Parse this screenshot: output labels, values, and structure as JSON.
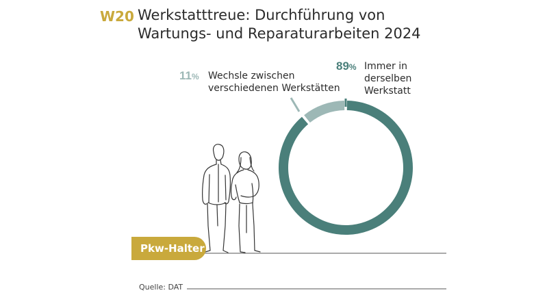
{
  "header": {
    "code": "W20",
    "title_lines": [
      "Werkstatttreue: Durchführung von",
      "Wartungs- und Reparaturarbeiten 2024"
    ]
  },
  "badge": {
    "label": "Pkw-Halter"
  },
  "source": {
    "text": "Quelle: DAT"
  },
  "colors": {
    "accent": "#c9a93c",
    "primary": "#4a7f7a",
    "secondary": "#9db8b6"
  },
  "chart_data": {
    "type": "pie",
    "title": "Werkstatttreue: Durchführung von Wartungs- und Reparaturarbeiten 2024",
    "categories": [
      "Immer in derselben Werkstatt",
      "Wechsle zwischen verschiedenen Werkstätten"
    ],
    "values": [
      89,
      11
    ],
    "unit": "%",
    "labels": [
      {
        "value": "89",
        "unit": "%",
        "lines": [
          "Immer in",
          "derselben",
          "Werkstatt"
        ]
      },
      {
        "value": "11",
        "unit": "%",
        "lines": [
          "Wechsle zwischen",
          "verschiedenen Werkstätten"
        ]
      }
    ]
  }
}
